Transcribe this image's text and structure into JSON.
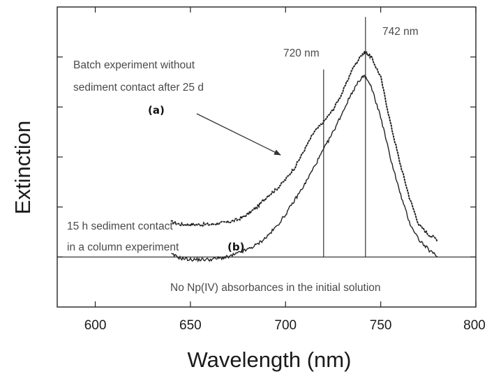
{
  "chart_data": {
    "type": "line",
    "xlabel": "Wavelength (nm)",
    "ylabel": "Extinction",
    "xlim": [
      580,
      800
    ],
    "ylim": [
      -0.2,
      1.0
    ],
    "xticks": [
      600,
      650,
      700,
      750,
      800
    ],
    "grid": false,
    "baseline_y": 0,
    "series": [
      {
        "label": "(a)",
        "style": "dotted",
        "x": [
          640,
          645,
          650,
          655,
          660,
          665,
          670,
          675,
          680,
          685,
          690,
          695,
          700,
          705,
          710,
          715,
          720,
          725,
          730,
          735,
          740,
          742,
          745,
          750,
          755,
          760,
          765,
          770,
          775,
          780
        ],
        "y": [
          0.14,
          0.13,
          0.13,
          0.13,
          0.13,
          0.135,
          0.14,
          0.15,
          0.17,
          0.2,
          0.24,
          0.27,
          0.31,
          0.36,
          0.43,
          0.5,
          0.54,
          0.59,
          0.66,
          0.75,
          0.81,
          0.82,
          0.8,
          0.72,
          0.54,
          0.38,
          0.24,
          0.13,
          0.09,
          0.07
        ]
      },
      {
        "label": "(b)",
        "style": "solid",
        "x": [
          640,
          645,
          650,
          655,
          660,
          665,
          670,
          675,
          680,
          685,
          690,
          695,
          700,
          705,
          710,
          715,
          720,
          725,
          730,
          735,
          740,
          742,
          745,
          750,
          755,
          760,
          765,
          770,
          775,
          780
        ],
        "y": [
          0.01,
          -0.005,
          -0.01,
          -0.01,
          -0.01,
          -0.005,
          0.0,
          0.015,
          0.03,
          0.05,
          0.08,
          0.12,
          0.17,
          0.23,
          0.29,
          0.36,
          0.43,
          0.5,
          0.58,
          0.66,
          0.72,
          0.72,
          0.68,
          0.56,
          0.4,
          0.26,
          0.14,
          0.07,
          0.03,
          0.0
        ]
      }
    ],
    "markers": [
      {
        "x": 720,
        "label": "720 nm",
        "y_top": 0.75
      },
      {
        "x": 742,
        "label": "742 nm",
        "y_top": 0.96
      }
    ],
    "annotations": {
      "batch_line1": "Batch experiment without",
      "batch_line2": "sediment contact after 25 d",
      "label_a": "(a)",
      "column_line1": "15 h sediment contact",
      "column_line2": "in a column experiment",
      "label_b": "(b)",
      "no_np": "No Np(IV) absorbances in the initial solution"
    }
  }
}
